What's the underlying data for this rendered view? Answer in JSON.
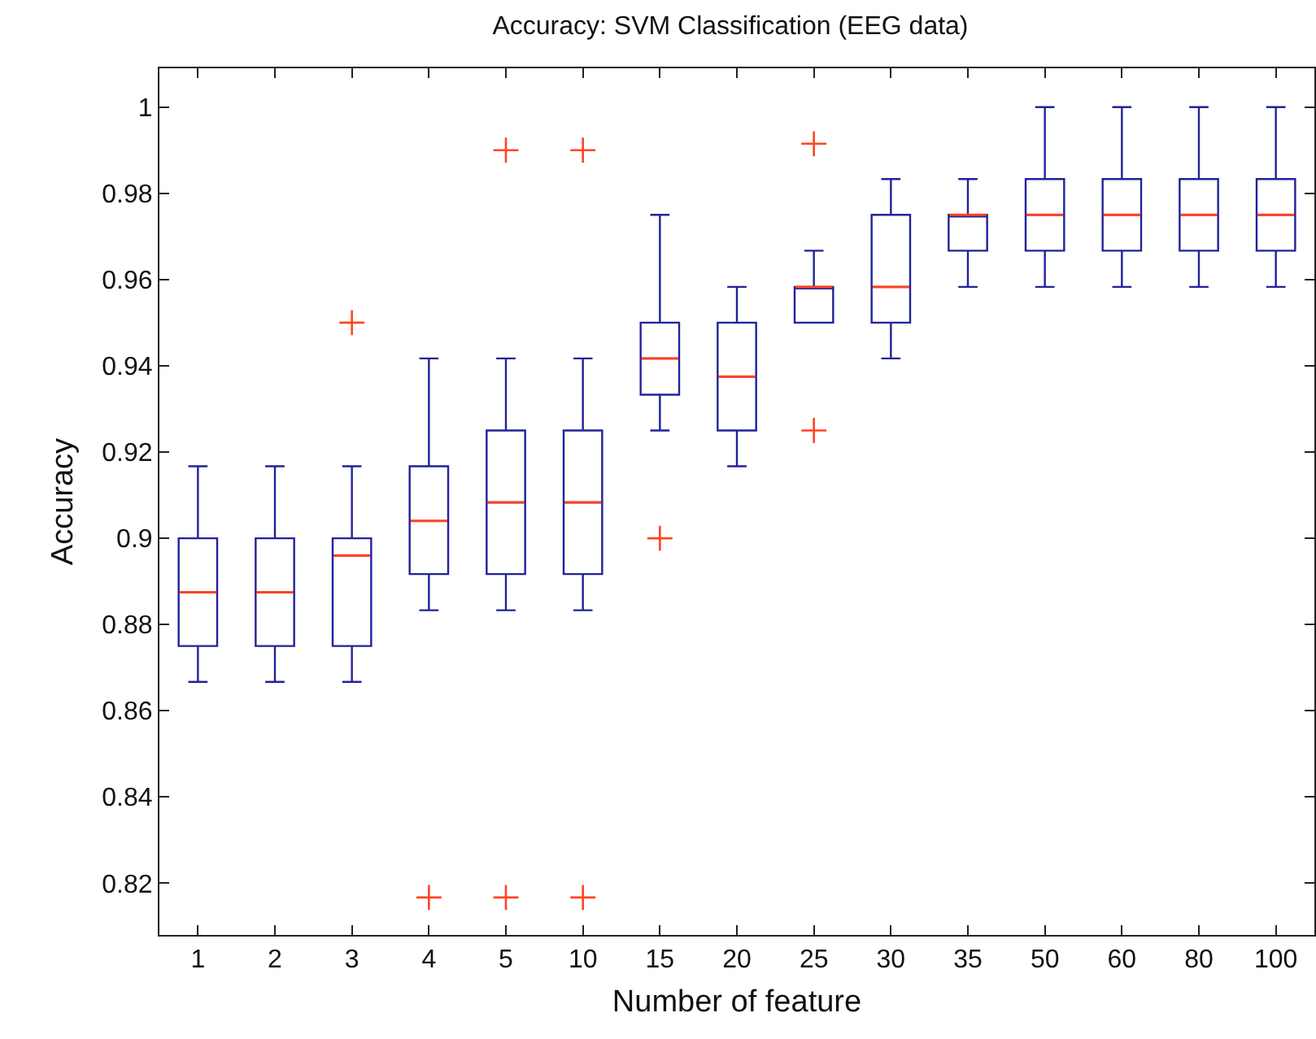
{
  "chart_data": {
    "type": "box",
    "title": "Accuracy: SVM Classification (EEG data)",
    "xlabel": "Number of feature",
    "ylabel": "Accuracy",
    "categories": [
      "1",
      "2",
      "3",
      "4",
      "5",
      "10",
      "15",
      "20",
      "25",
      "30",
      "35",
      "50",
      "60",
      "80",
      "100"
    ],
    "ylim": [
      0.808,
      1.009
    ],
    "yticks": [
      0.82,
      0.84,
      0.86,
      0.88,
      0.9,
      0.92,
      0.94,
      0.96,
      0.98,
      1
    ],
    "marker": "cross",
    "series": [
      {
        "color": "#22229a",
        "boxes": [
          {
            "low": 0.8667,
            "q1": 0.875,
            "median": 0.8875,
            "q3": 0.9,
            "high": 0.9167
          },
          {
            "low": 0.8667,
            "q1": 0.875,
            "median": 0.8875,
            "q3": 0.9,
            "high": 0.9167
          },
          {
            "low": 0.8667,
            "q1": 0.875,
            "median": 0.896,
            "q3": 0.9,
            "high": 0.9167,
            "outliers": [
              0.95
            ]
          },
          {
            "low": 0.8833,
            "q1": 0.8917,
            "median": 0.904,
            "q3": 0.9167,
            "high": 0.9417,
            "outliers": [
              0.8167
            ]
          },
          {
            "low": 0.8833,
            "q1": 0.8917,
            "median": 0.9083,
            "q3": 0.925,
            "high": 0.9417,
            "outliers": [
              0.99,
              0.8167
            ]
          },
          {
            "low": 0.8833,
            "q1": 0.8917,
            "median": 0.9083,
            "q3": 0.925,
            "high": 0.9417,
            "outliers": [
              0.99,
              0.8167
            ]
          },
          {
            "low": 0.925,
            "q1": 0.9333,
            "median": 0.9417,
            "q3": 0.95,
            "high": 0.975,
            "outliers": [
              0.9
            ]
          },
          {
            "low": 0.9167,
            "q1": 0.925,
            "median": 0.9375,
            "q3": 0.95,
            "high": 0.9583
          },
          {
            "low": 0.95,
            "q1": 0.95,
            "median": 0.9583,
            "q3": 0.9583,
            "high": 0.9667,
            "outliers": [
              0.9915,
              0.925
            ]
          },
          {
            "low": 0.9417,
            "q1": 0.95,
            "median": 0.9583,
            "q3": 0.975,
            "high": 0.9833
          },
          {
            "low": 0.9583,
            "q1": 0.9667,
            "median": 0.975,
            "q3": 0.975,
            "high": 0.9833
          },
          {
            "low": 0.9583,
            "q1": 0.9667,
            "median": 0.975,
            "q3": 0.9833,
            "high": 1
          },
          {
            "low": 0.9583,
            "q1": 0.9667,
            "median": 0.975,
            "q3": 0.9833,
            "high": 1
          },
          {
            "low": 0.9583,
            "q1": 0.9667,
            "median": 0.975,
            "q3": 0.9833,
            "high": 1
          },
          {
            "low": 0.9583,
            "q1": 0.9667,
            "median": 0.975,
            "q3": 0.9833,
            "high": 1
          }
        ]
      }
    ],
    "colors": [
      "#ff4422"
    ]
  }
}
